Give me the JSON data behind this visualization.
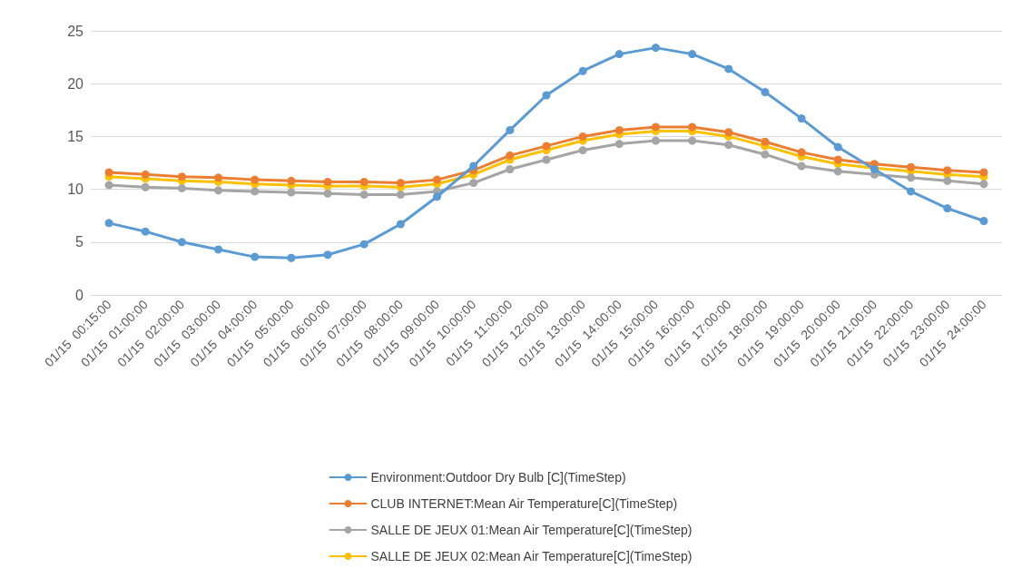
{
  "chart_data": {
    "type": "line",
    "categories": [
      "01/15  00:15:00",
      "01/15  01:00:00",
      "01/15  02:00:00",
      "01/15  03:00:00",
      "01/15  04:00:00",
      "01/15  05:00:00",
      "01/15  06:00:00",
      "01/15  07:00:00",
      "01/15  08:00:00",
      "01/15  09:00:00",
      "01/15  10:00:00",
      "01/15  11:00:00",
      "01/15  12:00:00",
      "01/15  13:00:00",
      "01/15  14:00:00",
      "01/15  15:00:00",
      "01/15  16:00:00",
      "01/15  17:00:00",
      "01/15  18:00:00",
      "01/15  19:00:00",
      "01/15  20:00:00",
      "01/15  21:00:00",
      "01/15  22:00:00",
      "01/15  23:00:00",
      "01/15  24:00:00"
    ],
    "series": [
      {
        "name": "Environment:Outdoor Dry Bulb [C](TimeStep)",
        "color": "#5b9bd5",
        "values": [
          6.8,
          6.0,
          5.0,
          4.3,
          3.6,
          3.5,
          3.8,
          4.8,
          6.7,
          9.3,
          12.2,
          15.6,
          18.9,
          21.2,
          22.8,
          23.4,
          22.8,
          21.4,
          19.2,
          16.7,
          14.0,
          11.9,
          9.8,
          8.2,
          7.0
        ]
      },
      {
        "name": "CLUB INTERNET:Mean Air Temperature[C](TimeStep)",
        "color": "#ed7d31",
        "values": [
          11.6,
          11.4,
          11.2,
          11.1,
          10.9,
          10.8,
          10.7,
          10.7,
          10.6,
          10.9,
          11.8,
          13.2,
          14.1,
          15.0,
          15.6,
          15.9,
          15.9,
          15.4,
          14.5,
          13.5,
          12.8,
          12.4,
          12.1,
          11.8,
          11.6
        ]
      },
      {
        "name": "SALLE DE JEUX 01:Mean Air Temperature[C](TimeStep)",
        "color": "#a5a5a5",
        "values": [
          10.4,
          10.2,
          10.1,
          9.9,
          9.8,
          9.7,
          9.6,
          9.5,
          9.5,
          9.8,
          10.6,
          11.9,
          12.8,
          13.7,
          14.3,
          14.6,
          14.6,
          14.2,
          13.3,
          12.2,
          11.7,
          11.4,
          11.1,
          10.8,
          10.5
        ]
      },
      {
        "name": "SALLE DE JEUX 02:Mean Air Temperature[C](TimeStep)",
        "color": "#ffc000",
        "values": [
          11.2,
          11.0,
          10.8,
          10.7,
          10.5,
          10.4,
          10.3,
          10.3,
          10.2,
          10.5,
          11.4,
          12.8,
          13.7,
          14.6,
          15.2,
          15.5,
          15.5,
          15.0,
          14.1,
          13.1,
          12.4,
          12.0,
          11.7,
          11.4,
          11.2
        ]
      }
    ],
    "ylim": [
      0,
      25
    ],
    "yticks": [
      0,
      5,
      10,
      15,
      20,
      25
    ],
    "grid": "y",
    "legend": "bottom",
    "marker": "circle",
    "line_style": "solid"
  }
}
